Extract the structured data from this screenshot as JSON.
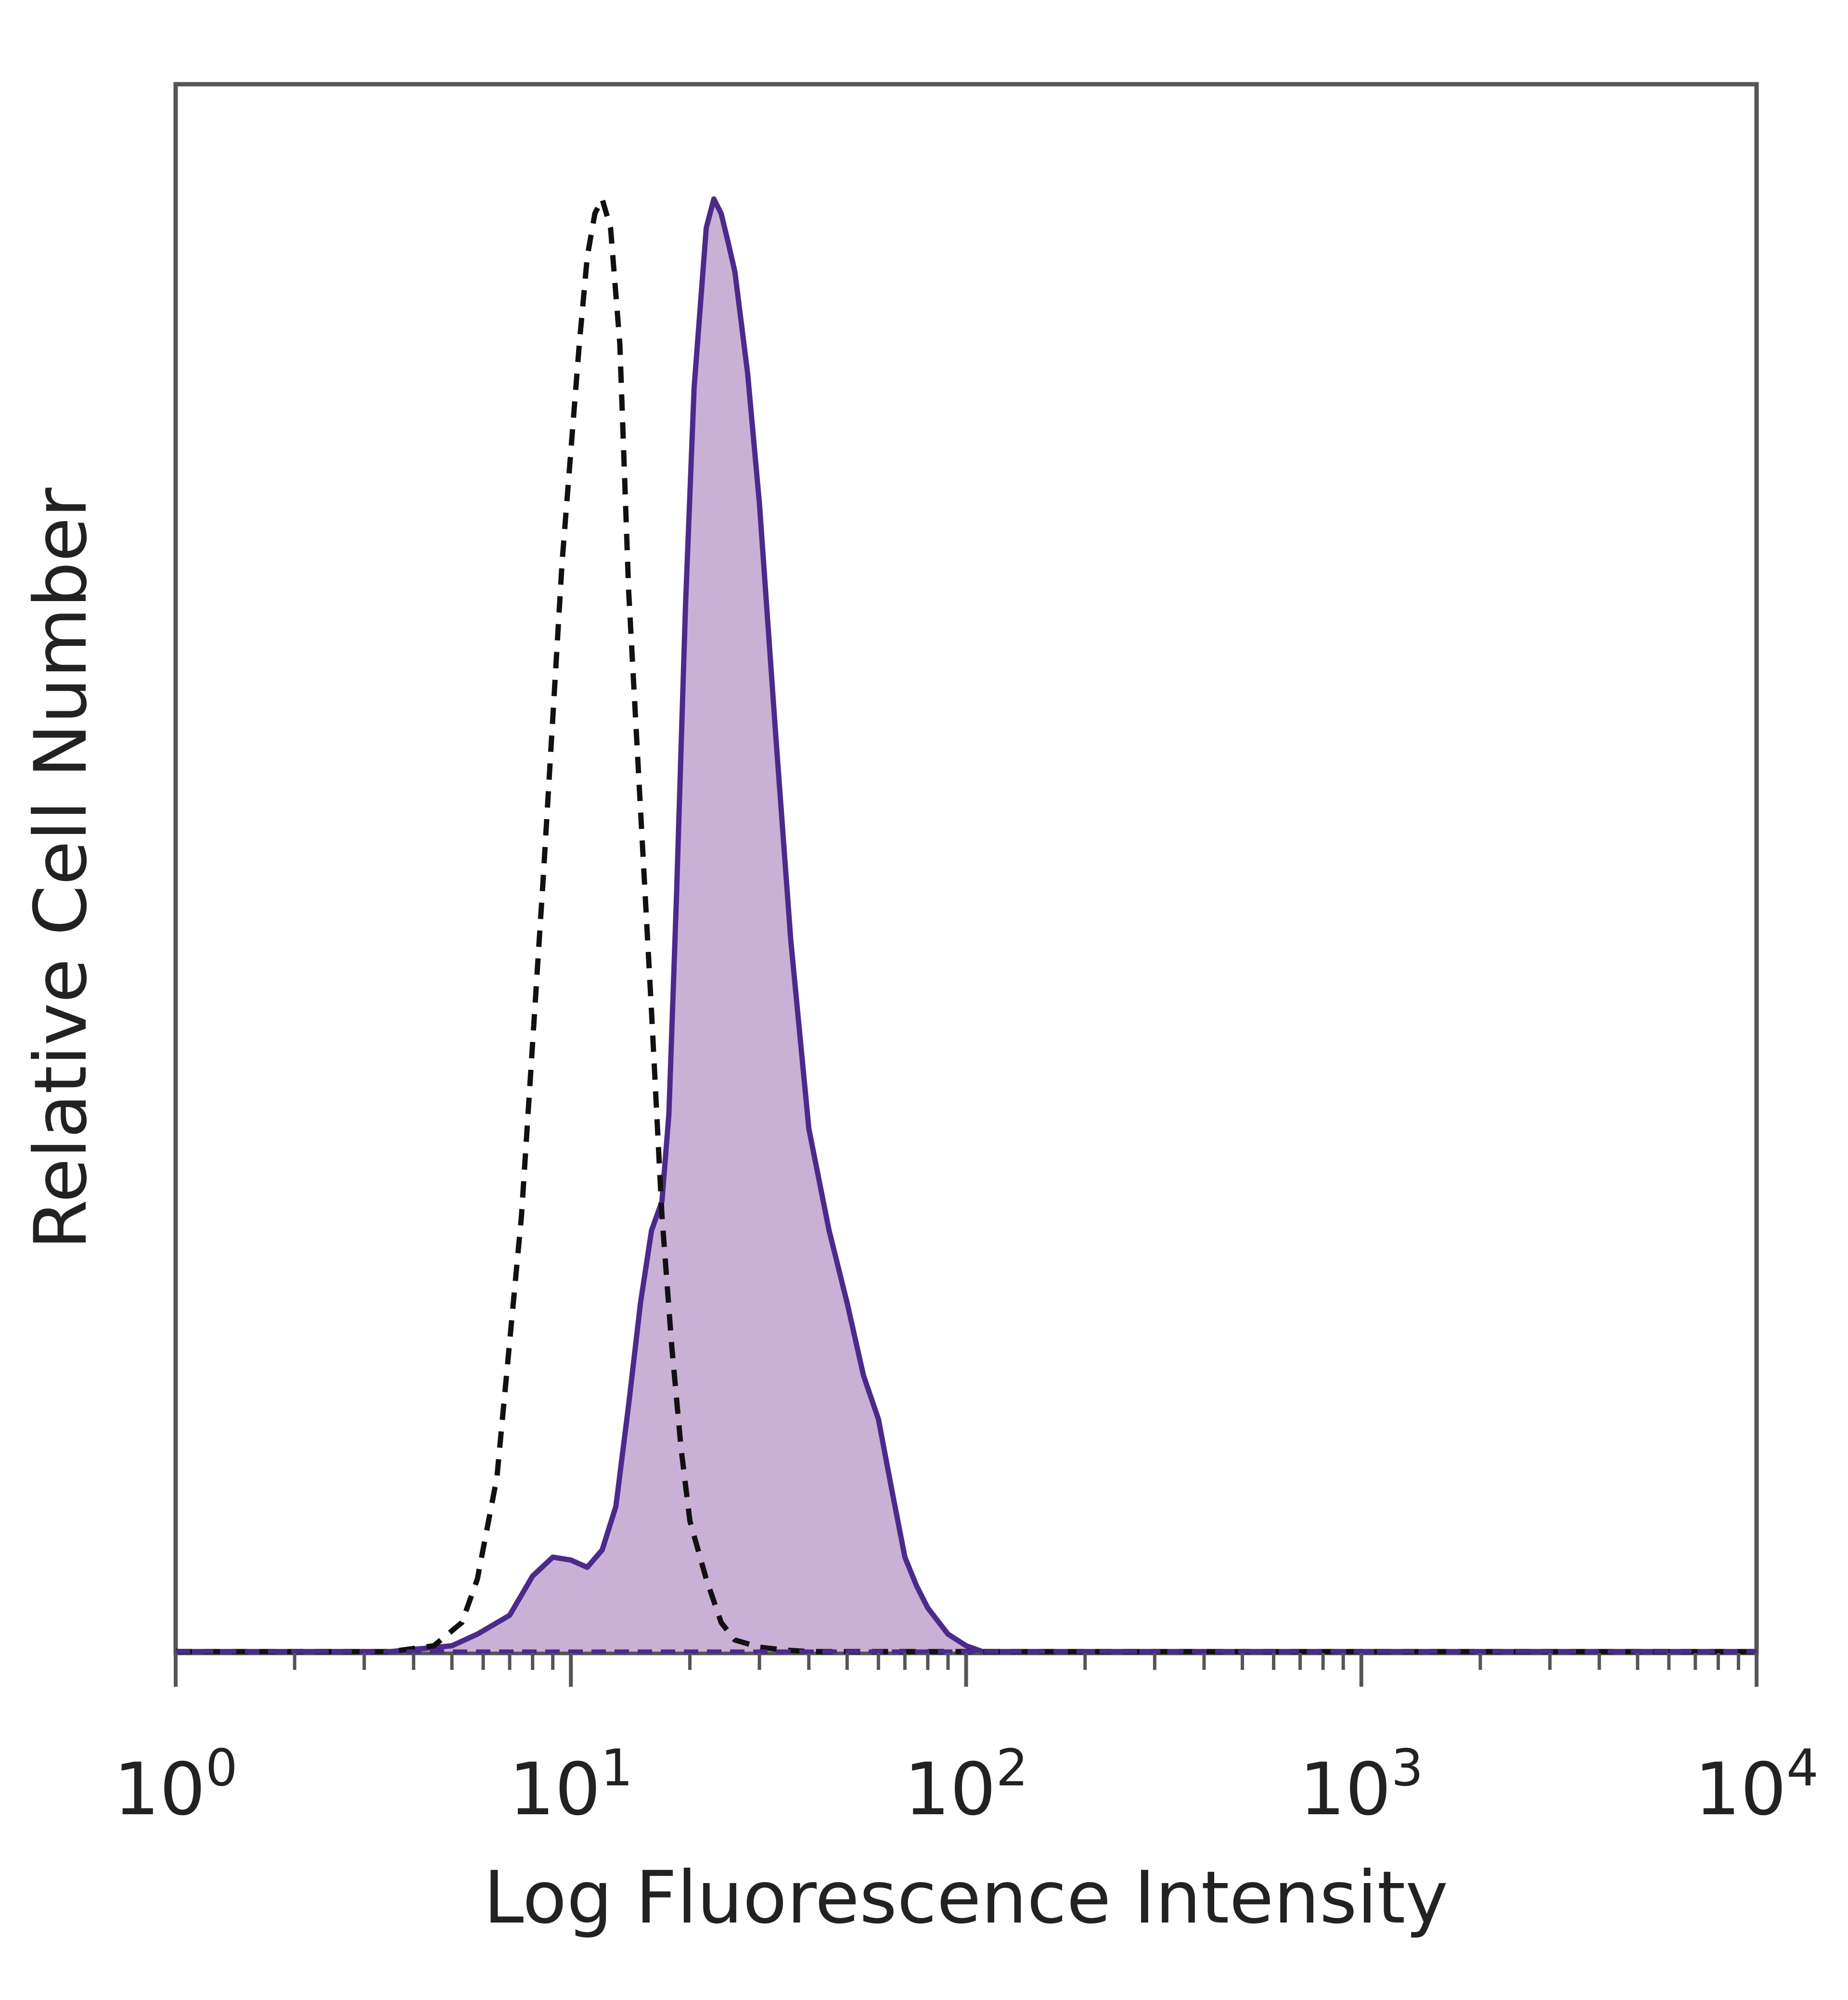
{
  "chart_data": {
    "type": "area",
    "title": "",
    "xlabel": "Log Fluorescence Intensity",
    "ylabel": "Relative Cell Number",
    "x_scale": "log",
    "xlim": [
      1,
      10000
    ],
    "ylim": [
      0,
      1.08
    ],
    "x_ticks": [
      {
        "value": 1,
        "base": "10",
        "exp": "0"
      },
      {
        "value": 10,
        "base": "10",
        "exp": "1"
      },
      {
        "value": 100,
        "base": "10",
        "exp": "2"
      },
      {
        "value": 1000,
        "base": "10",
        "exp": "3"
      },
      {
        "value": 10000,
        "base": "10",
        "exp": "4"
      }
    ],
    "grid": false,
    "legend": "none",
    "series": [
      {
        "style": "filled-solid",
        "stroke_color": "#4b2a8c",
        "fill_color": "#c9b1d5",
        "x": [
          1,
          3.5,
          5,
          5.8,
          7,
          8,
          9,
          10,
          11,
          12,
          13,
          14,
          15,
          16,
          17,
          17.7,
          18.5,
          19.5,
          20.5,
          22,
          23,
          24,
          25,
          26,
          28,
          30,
          33,
          36,
          40,
          45,
          50,
          55,
          60,
          65,
          70,
          75,
          80,
          90,
          100,
          110,
          1000,
          10000
        ],
        "y": [
          0,
          0,
          0.004,
          0.012,
          0.025,
          0.052,
          0.065,
          0.063,
          0.058,
          0.07,
          0.1,
          0.17,
          0.24,
          0.29,
          0.31,
          0.37,
          0.52,
          0.72,
          0.87,
          0.98,
          1.0,
          0.99,
          0.97,
          0.95,
          0.88,
          0.79,
          0.63,
          0.49,
          0.36,
          0.29,
          0.24,
          0.19,
          0.16,
          0.11,
          0.065,
          0.045,
          0.03,
          0.012,
          0.004,
          0,
          0,
          0
        ]
      },
      {
        "style": "dashed",
        "stroke_color": "#111111",
        "x": [
          1,
          3.5,
          4.5,
          5.3,
          5.8,
          6.5,
          7.5,
          8.5,
          9.5,
          10.5,
          11,
          11.5,
          12,
          12.6,
          13.3,
          14,
          15,
          16,
          17,
          18,
          19,
          20,
          22,
          24,
          26,
          30,
          35,
          40,
          10000
        ],
        "y": [
          0,
          0,
          0.004,
          0.02,
          0.05,
          0.12,
          0.3,
          0.53,
          0.75,
          0.9,
          0.96,
          0.99,
          1.0,
          0.98,
          0.9,
          0.73,
          0.58,
          0.44,
          0.3,
          0.21,
          0.14,
          0.09,
          0.05,
          0.02,
          0.008,
          0.003,
          0.001,
          0,
          0
        ]
      }
    ]
  }
}
